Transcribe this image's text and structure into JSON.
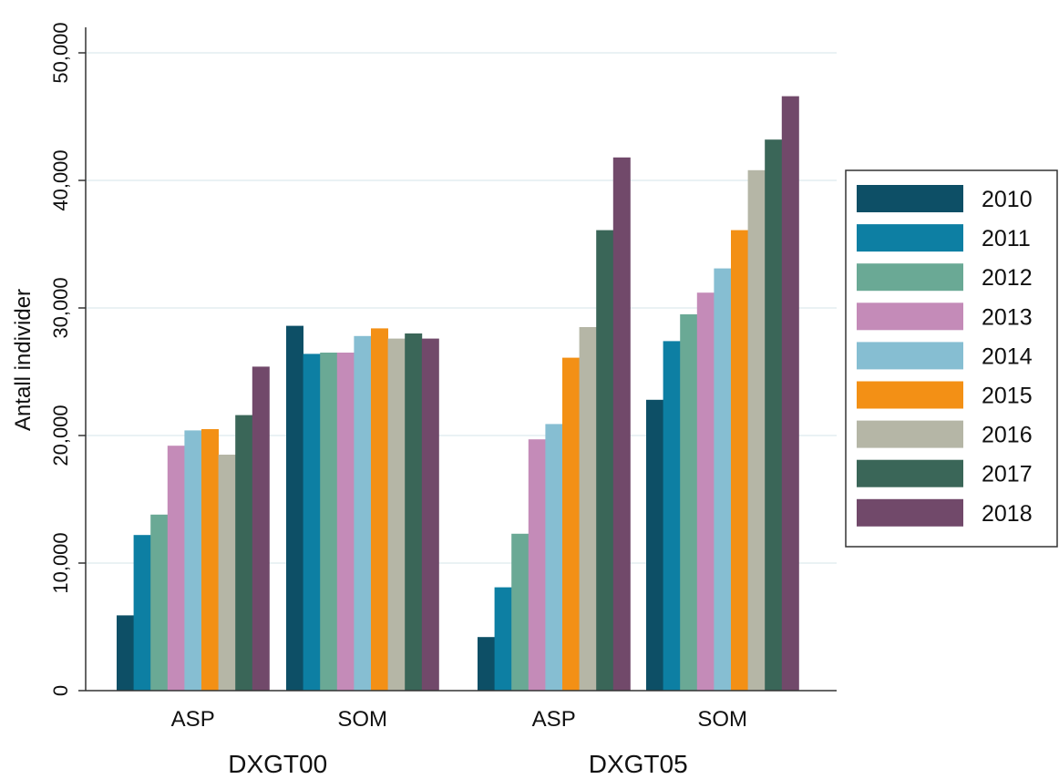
{
  "chart_data": {
    "type": "bar",
    "ylabel": "Antall individer",
    "ylim": [
      0,
      52000
    ],
    "yticks": [
      0,
      10000,
      20000,
      30000,
      40000,
      50000
    ],
    "ytick_labels": [
      "0",
      "10,000",
      "20,000",
      "30,000",
      "40,000",
      "50,000"
    ],
    "grid": true,
    "legend_position": "right",
    "groups": [
      {
        "label": "DXGT00",
        "categories": [
          "ASP",
          "SOM"
        ]
      },
      {
        "label": "DXGT05",
        "categories": [
          "ASP",
          "SOM"
        ]
      }
    ],
    "categories": [
      "DXGT00 ASP",
      "DXGT00 SOM",
      "DXGT05 ASP",
      "DXGT05 SOM"
    ],
    "series": [
      {
        "name": "2010",
        "color": "#0d4f66",
        "values": [
          5900,
          28600,
          4200,
          22800
        ]
      },
      {
        "name": "2011",
        "color": "#0d7fa3",
        "values": [
          12200,
          26400,
          8100,
          27400
        ]
      },
      {
        "name": "2012",
        "color": "#6aa995",
        "values": [
          13800,
          26500,
          12300,
          29500
        ]
      },
      {
        "name": "2013",
        "color": "#c48bb8",
        "values": [
          19200,
          26500,
          19700,
          31200
        ]
      },
      {
        "name": "2014",
        "color": "#86bed2",
        "values": [
          20400,
          27800,
          20900,
          33100
        ]
      },
      {
        "name": "2015",
        "color": "#f39015",
        "values": [
          20500,
          28400,
          26100,
          36100
        ]
      },
      {
        "name": "2016",
        "color": "#b5b6a6",
        "values": [
          18500,
          27600,
          28500,
          40800
        ]
      },
      {
        "name": "2017",
        "color": "#3a6658",
        "values": [
          21600,
          28000,
          36100,
          43200
        ]
      },
      {
        "name": "2018",
        "color": "#71496a",
        "values": [
          25400,
          27600,
          41800,
          46600
        ]
      }
    ]
  }
}
